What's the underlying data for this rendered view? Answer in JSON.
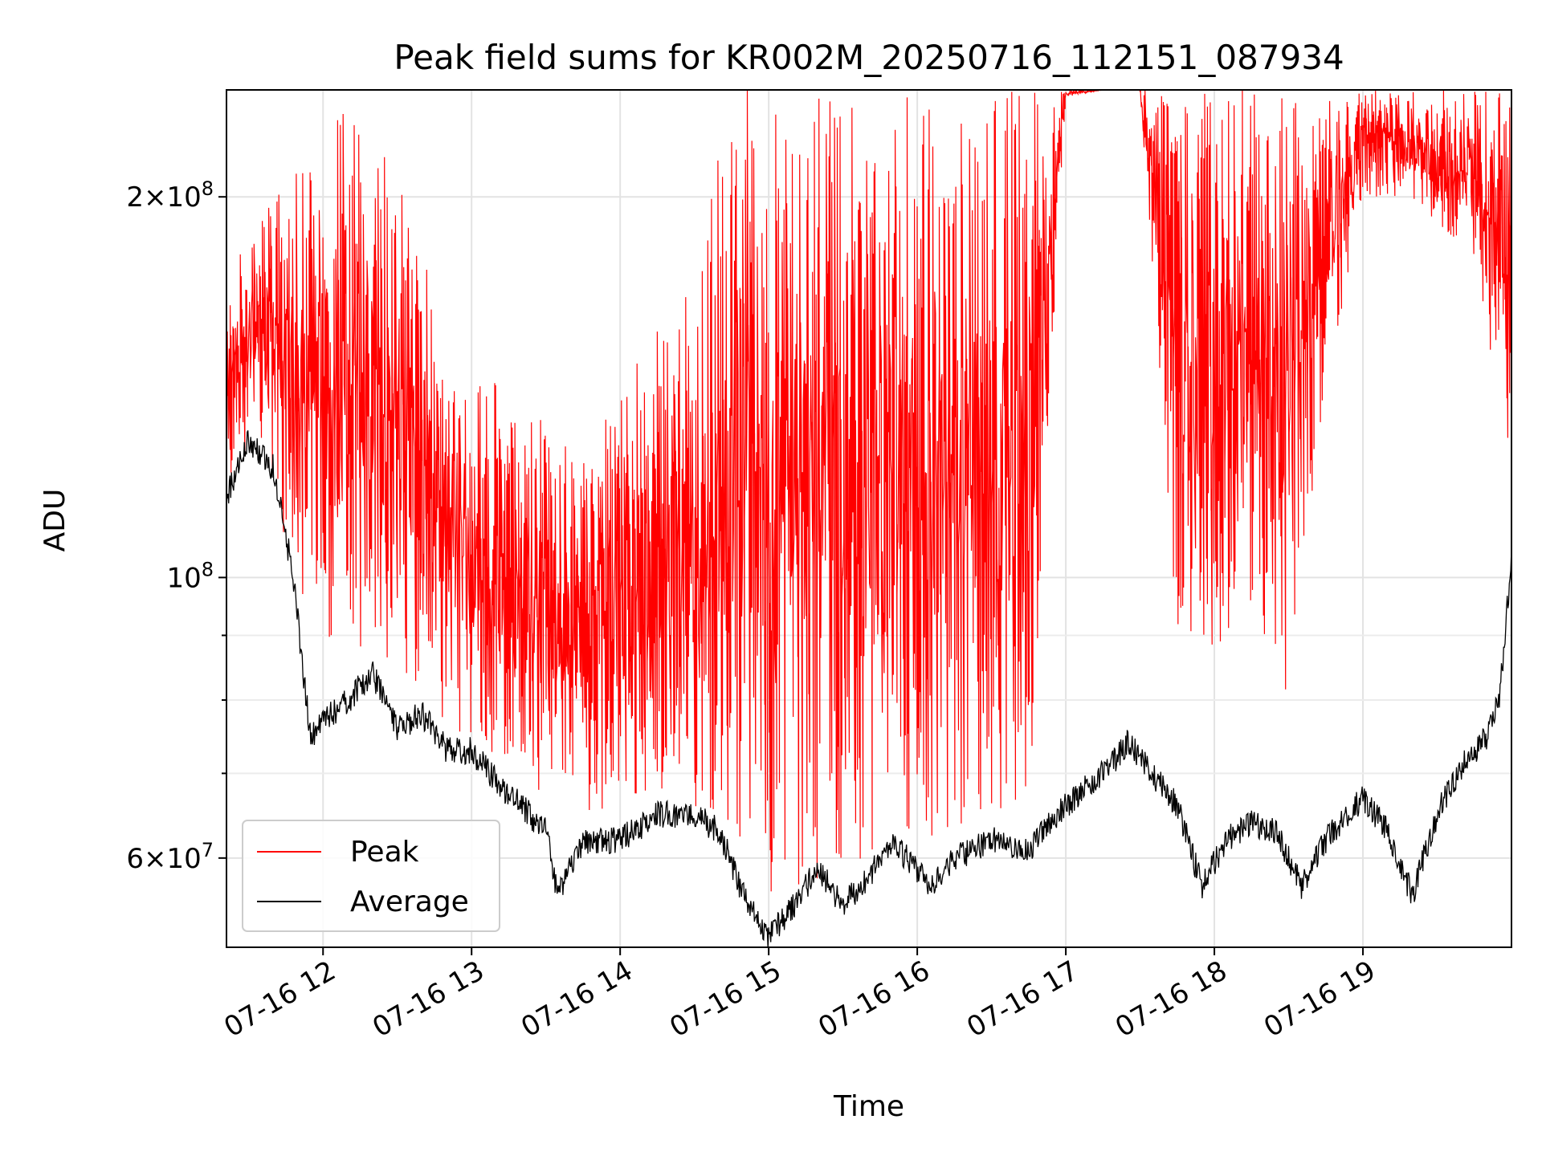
{
  "chart_data": {
    "type": "line",
    "title": "Peak field sums for KR002M_20250716_112151_087934",
    "xlabel": "Time",
    "ylabel": "ADU",
    "yscale": "log",
    "xlim": [
      "2025-07-16 11:21",
      "2025-07-16 20:00"
    ],
    "ylim": [
      51000000,
      243000000
    ],
    "grid": true,
    "legend_position": "lower-left",
    "x_ticks": [
      {
        "t": "2025-07-16 12:00",
        "label": "07-16 12"
      },
      {
        "t": "2025-07-16 13:00",
        "label": "07-16 13"
      },
      {
        "t": "2025-07-16 14:00",
        "label": "07-16 14"
      },
      {
        "t": "2025-07-16 15:00",
        "label": "07-16 15"
      },
      {
        "t": "2025-07-16 16:00",
        "label": "07-16 16"
      },
      {
        "t": "2025-07-16 17:00",
        "label": "07-16 17"
      },
      {
        "t": "2025-07-16 18:00",
        "label": "07-16 18"
      },
      {
        "t": "2025-07-16 19:00",
        "label": "07-16 19"
      }
    ],
    "y_ticks": [
      {
        "v": 60000000,
        "base": "6",
        "exp": "7"
      },
      {
        "v": 100000000,
        "base": "",
        "exp": "8"
      },
      {
        "v": 200000000,
        "base": "2",
        "exp": "8"
      }
    ],
    "y_minor_ticks": [
      70000000,
      80000000,
      90000000
    ],
    "series": [
      {
        "name": "Peak",
        "color": "#ff0000",
        "x": [
          "2025-07-16 11:21",
          "2025-07-16 11:30",
          "2025-07-16 11:40",
          "2025-07-16 11:50",
          "2025-07-16 12:00",
          "2025-07-16 12:15",
          "2025-07-16 12:30",
          "2025-07-16 12:45",
          "2025-07-16 13:00",
          "2025-07-16 13:15",
          "2025-07-16 13:30",
          "2025-07-16 13:45",
          "2025-07-16 14:00",
          "2025-07-16 14:15",
          "2025-07-16 14:30",
          "2025-07-16 14:45",
          "2025-07-16 15:00",
          "2025-07-16 15:15",
          "2025-07-16 15:30",
          "2025-07-16 15:45",
          "2025-07-16 16:00",
          "2025-07-16 16:15",
          "2025-07-16 16:30",
          "2025-07-16 16:45",
          "2025-07-16 17:00",
          "2025-07-16 17:15",
          "2025-07-16 17:30",
          "2025-07-16 17:45",
          "2025-07-16 18:00",
          "2025-07-16 18:15",
          "2025-07-16 18:30",
          "2025-07-16 18:45",
          "2025-07-16 19:00",
          "2025-07-16 19:15",
          "2025-07-16 19:30",
          "2025-07-16 19:45",
          "2025-07-16 20:00"
        ],
        "upper": [
          175000000,
          195000000,
          205000000,
          215000000,
          225000000,
          240000000,
          215000000,
          170000000,
          150000000,
          140000000,
          135000000,
          125000000,
          140000000,
          160000000,
          175000000,
          243000000,
          243000000,
          243000000,
          243000000,
          243000000,
          243000000,
          243000000,
          243000000,
          243000000,
          243000000,
          243000000,
          243000000,
          243000000,
          243000000,
          243000000,
          243000000,
          243000000,
          243000000,
          243000000,
          243000000,
          243000000,
          243000000
        ],
        "lower": [
          118000000,
          126000000,
          115000000,
          98000000,
          90000000,
          88000000,
          85000000,
          78000000,
          74000000,
          71000000,
          67000000,
          65000000,
          65000000,
          66000000,
          66000000,
          60000000,
          56000000,
          57000000,
          58000000,
          61000000,
          62000000,
          63000000,
          65000000,
          65000000,
          240000000,
          243000000,
          243000000,
          90000000,
          85000000,
          95000000,
          80000000,
          140000000,
          200000000,
          200000000,
          190000000,
          180000000,
          120000000
        ]
      },
      {
        "name": "Average",
        "color": "#000000",
        "x": [
          "2025-07-16 11:21",
          "2025-07-16 11:30",
          "2025-07-16 11:40",
          "2025-07-16 11:48",
          "2025-07-16 11:52",
          "2025-07-16 11:55",
          "2025-07-16 12:00",
          "2025-07-16 12:10",
          "2025-07-16 12:20",
          "2025-07-16 12:30",
          "2025-07-16 12:40",
          "2025-07-16 12:50",
          "2025-07-16 13:00",
          "2025-07-16 13:10",
          "2025-07-16 13:20",
          "2025-07-16 13:30",
          "2025-07-16 13:35",
          "2025-07-16 13:45",
          "2025-07-16 14:00",
          "2025-07-16 14:15",
          "2025-07-16 14:30",
          "2025-07-16 14:40",
          "2025-07-16 14:50",
          "2025-07-16 15:00",
          "2025-07-16 15:10",
          "2025-07-16 15:20",
          "2025-07-16 15:30",
          "2025-07-16 15:40",
          "2025-07-16 15:50",
          "2025-07-16 16:05",
          "2025-07-16 16:15",
          "2025-07-16 16:30",
          "2025-07-16 16:45",
          "2025-07-16 17:00",
          "2025-07-16 17:15",
          "2025-07-16 17:25",
          "2025-07-16 17:35",
          "2025-07-16 17:45",
          "2025-07-16 17:55",
          "2025-07-16 18:05",
          "2025-07-16 18:15",
          "2025-07-16 18:25",
          "2025-07-16 18:35",
          "2025-07-16 18:45",
          "2025-07-16 19:00",
          "2025-07-16 19:10",
          "2025-07-16 19:20",
          "2025-07-16 19:30",
          "2025-07-16 19:40",
          "2025-07-16 19:50",
          "2025-07-16 19:55",
          "2025-07-16 20:00"
        ],
        "y": [
          116000000,
          128000000,
          122000000,
          100000000,
          84000000,
          75000000,
          77000000,
          80000000,
          84000000,
          76000000,
          78000000,
          73000000,
          73000000,
          69000000,
          66000000,
          63000000,
          56000000,
          62000000,
          62000000,
          65000000,
          65000000,
          63000000,
          56000000,
          52000000,
          55000000,
          59000000,
          55000000,
          58000000,
          62000000,
          57000000,
          60000000,
          62000000,
          61000000,
          66000000,
          70000000,
          74000000,
          70000000,
          66000000,
          57000000,
          62000000,
          64000000,
          63000000,
          57000000,
          62000000,
          67000000,
          63000000,
          56000000,
          65000000,
          71000000,
          75000000,
          80000000,
          103000000
        ]
      }
    ]
  }
}
